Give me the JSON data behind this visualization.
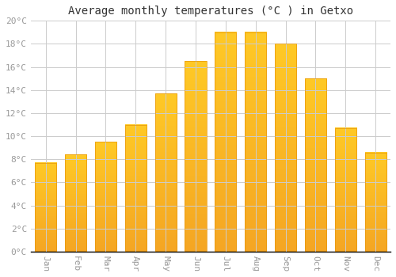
{
  "title": "Average monthly temperatures (°C ) in Getxo",
  "months": [
    "Jan",
    "Feb",
    "Mar",
    "Apr",
    "May",
    "Jun",
    "Jul",
    "Aug",
    "Sep",
    "Oct",
    "Nov",
    "Dec"
  ],
  "temperatures": [
    7.7,
    8.4,
    9.5,
    11.0,
    13.7,
    16.5,
    19.0,
    19.0,
    18.0,
    15.0,
    10.7,
    8.6
  ],
  "bar_color_top": "#FFC926",
  "bar_color_bottom": "#F5A623",
  "bar_edge_color": "#E8960A",
  "background_color": "#FFFFFF",
  "grid_color": "#CCCCCC",
  "ylim": [
    0,
    20
  ],
  "ytick_step": 2,
  "title_fontsize": 10,
  "tick_fontsize": 8,
  "tick_color": "#999999",
  "title_color": "#333333",
  "font_family": "monospace"
}
